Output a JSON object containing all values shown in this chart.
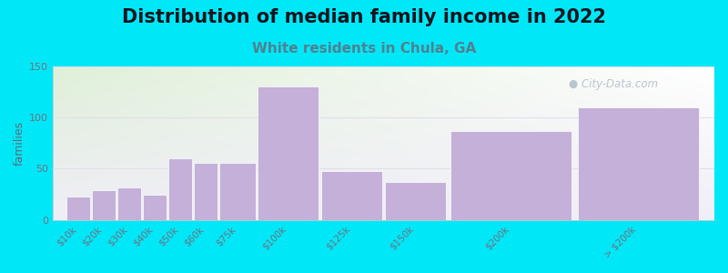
{
  "title": "Distribution of median family income in 2022",
  "subtitle": "White residents in Chula, GA",
  "categories": [
    "$10k",
    "$20k",
    "$30k",
    "$40k",
    "$50k",
    "$60k",
    "$75k",
    "$100k",
    "$125k",
    "$150k",
    "$200k",
    "> $200k"
  ],
  "values": [
    23,
    29,
    32,
    25,
    60,
    56,
    56,
    130,
    48,
    37,
    87,
    110
  ],
  "bar_widths": [
    10,
    10,
    10,
    10,
    10,
    10,
    15,
    25,
    25,
    25,
    50,
    50
  ],
  "bar_lefts": [
    0,
    10,
    20,
    30,
    40,
    50,
    60,
    75,
    100,
    125,
    150,
    200
  ],
  "bar_color": "#c4b0d8",
  "bar_edgecolor": "#ffffff",
  "background_outer": "#00e8f8",
  "background_plot_left_top": "#dff0d8",
  "background_plot_right_bottom": "#f0eef8",
  "ylabel": "families",
  "ylim": [
    0,
    150
  ],
  "yticks": [
    0,
    50,
    100,
    150
  ],
  "title_fontsize": 15,
  "subtitle_fontsize": 11,
  "subtitle_color": "#508090",
  "watermark": "City-Data.com",
  "watermark_color": "#b0bcc8",
  "grid_color": "#e0dce8",
  "axis_color": "#c0c8d0",
  "tick_color": "#707080",
  "ylabel_color": "#606878"
}
